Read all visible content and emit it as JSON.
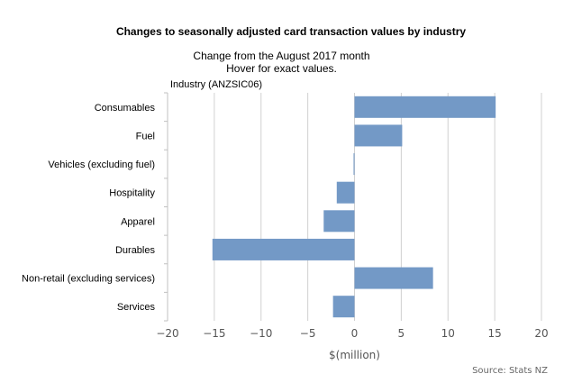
{
  "chart_data": {
    "type": "bar",
    "orientation": "horizontal",
    "title": "Changes to seasonally adjusted card transaction values by industry",
    "subtitle": [
      "Change from the August 2017 month",
      "Hover for exact values."
    ],
    "ylabel": "Industry (ANZSIC06)",
    "xlabel": "$(million)",
    "source": "Source: Stats NZ",
    "categories": [
      "Consumables",
      "Fuel",
      "Vehicles (excluding fuel)",
      "Hospitality",
      "Apparel",
      "Durables",
      "Non-retail (excluding services)",
      "Services"
    ],
    "values": [
      15.1,
      5.1,
      -0.1,
      -1.9,
      -3.3,
      -15.2,
      8.4,
      -2.3
    ],
    "xlim": [
      -20,
      20
    ],
    "xticks": [
      -20,
      -15,
      -10,
      -5,
      0,
      5,
      10,
      15,
      20
    ],
    "grid": true,
    "bar_color": "#7399c6"
  }
}
